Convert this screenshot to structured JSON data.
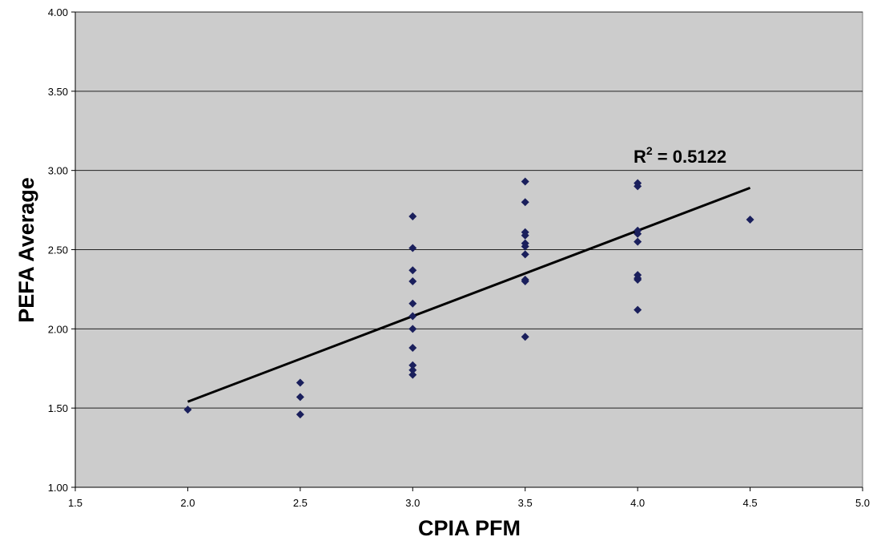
{
  "chart_data": {
    "type": "scatter",
    "title": "",
    "xlabel": "CPIA PFM",
    "ylabel": "PEFA Average",
    "xlim": [
      1.5,
      5.0
    ],
    "ylim": [
      1.0,
      4.0
    ],
    "x_ticks": [
      "1.5",
      "2.0",
      "2.5",
      "3.0",
      "3.5",
      "4.0",
      "4.5",
      "5.0"
    ],
    "y_ticks": [
      "1.00",
      "1.50",
      "2.00",
      "2.50",
      "3.00",
      "3.50",
      "4.00"
    ],
    "grid": "horizontal",
    "legend": "none",
    "annotation": {
      "prefix": "R",
      "superscript": "2",
      "text": " = 0.5122"
    },
    "colors": {
      "plot_background": "#cccccc",
      "marker": "#1a1f5c",
      "trendline": "#000000",
      "grid": "#222222"
    },
    "points": [
      {
        "x": 2.0,
        "y": 1.49
      },
      {
        "x": 2.5,
        "y": 1.66
      },
      {
        "x": 2.5,
        "y": 1.57
      },
      {
        "x": 2.5,
        "y": 1.46
      },
      {
        "x": 3.0,
        "y": 2.71
      },
      {
        "x": 3.0,
        "y": 2.51
      },
      {
        "x": 3.0,
        "y": 2.37
      },
      {
        "x": 3.0,
        "y": 2.3
      },
      {
        "x": 3.0,
        "y": 2.16
      },
      {
        "x": 3.0,
        "y": 2.08
      },
      {
        "x": 3.0,
        "y": 2.0
      },
      {
        "x": 3.0,
        "y": 1.88
      },
      {
        "x": 3.0,
        "y": 1.77
      },
      {
        "x": 3.0,
        "y": 1.74
      },
      {
        "x": 3.0,
        "y": 1.71
      },
      {
        "x": 3.5,
        "y": 2.93
      },
      {
        "x": 3.5,
        "y": 2.8
      },
      {
        "x": 3.5,
        "y": 2.61
      },
      {
        "x": 3.5,
        "y": 2.59
      },
      {
        "x": 3.5,
        "y": 2.54
      },
      {
        "x": 3.5,
        "y": 2.52
      },
      {
        "x": 3.5,
        "y": 2.47
      },
      {
        "x": 3.5,
        "y": 2.31
      },
      {
        "x": 3.5,
        "y": 2.3
      },
      {
        "x": 3.5,
        "y": 1.95
      },
      {
        "x": 4.0,
        "y": 2.92
      },
      {
        "x": 4.0,
        "y": 2.9
      },
      {
        "x": 4.0,
        "y": 2.62
      },
      {
        "x": 4.0,
        "y": 2.6
      },
      {
        "x": 4.0,
        "y": 2.55
      },
      {
        "x": 4.0,
        "y": 2.34
      },
      {
        "x": 4.0,
        "y": 2.32
      },
      {
        "x": 4.0,
        "y": 2.31
      },
      {
        "x": 4.0,
        "y": 2.12
      },
      {
        "x": 4.5,
        "y": 2.69
      }
    ],
    "trendline": {
      "x": [
        2.0,
        4.5
      ],
      "y": [
        1.54,
        2.89
      ]
    }
  }
}
